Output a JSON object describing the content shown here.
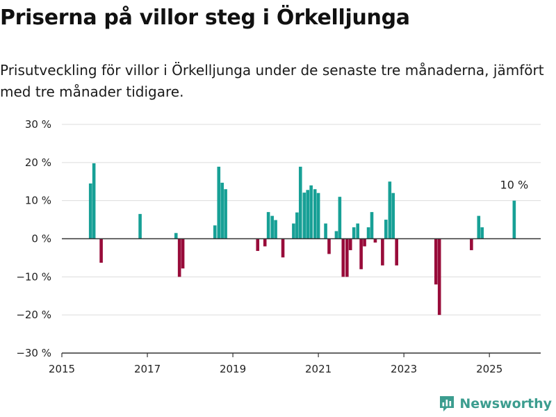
{
  "header": {
    "title": "Priserna på villor steg i Örkelljunga",
    "subtitle": "Prisutveckling för villor i Örkelljunga under de senaste tre månaderna, jämfört med tre månader tidigare."
  },
  "brand": {
    "name": "Newsworthy",
    "icon": "bar-chart-logo-icon",
    "color": "#3c9d8f"
  },
  "chart_data": {
    "type": "bar",
    "ylim": [
      -30,
      30
    ],
    "xlim": [
      2015,
      2026.2
    ],
    "yticks": [
      -30,
      -20,
      -10,
      0,
      10,
      20,
      30
    ],
    "ytick_labels": [
      "−30 %",
      "−20 %",
      "−10 %",
      "0 %",
      "10 %",
      "20 %",
      "30 %"
    ],
    "xticks": [
      2015,
      2017,
      2019,
      2021,
      2023,
      2025
    ],
    "xtick_labels": [
      "2015",
      "2017",
      "2019",
      "2021",
      "2023",
      "2025"
    ],
    "grid": true,
    "colors": {
      "positive": "#17a096",
      "negative": "#980c3a"
    },
    "annotation": {
      "text": "10 %",
      "x": 2025.58,
      "y": 10
    },
    "series": [
      {
        "x": [
          2015.67,
          2015.75,
          2015.92,
          2016.83,
          2017.67,
          2017.75,
          2017.83,
          2018.58,
          2018.67,
          2018.75,
          2018.83,
          2019.58,
          2019.75,
          2019.83,
          2019.92,
          2020.0,
          2020.17,
          2020.42,
          2020.5,
          2020.58,
          2020.67,
          2020.75,
          2020.83,
          2020.92,
          2021.0,
          2021.17,
          2021.25,
          2021.42,
          2021.5,
          2021.58,
          2021.67,
          2021.75,
          2021.83,
          2021.92,
          2022.0,
          2022.08,
          2022.17,
          2022.25,
          2022.33,
          2022.5,
          2022.58,
          2022.67,
          2022.75,
          2022.83,
          2023.75,
          2023.83,
          2024.58,
          2024.75,
          2024.83,
          2025.58
        ],
        "values": [
          14.5,
          19.8,
          -6.3,
          6.5,
          1.5,
          -10,
          -7.8,
          3.5,
          18.9,
          14.7,
          13,
          -3.2,
          -2,
          7,
          6,
          4.9,
          -4.9,
          4,
          6.9,
          18.9,
          12.1,
          12.8,
          14,
          13,
          12,
          4,
          -4,
          2,
          11,
          -10,
          -10,
          -3,
          3,
          4,
          -8,
          -2,
          3,
          7,
          -1,
          -7,
          5,
          15,
          12,
          -7,
          -12,
          -20,
          -3,
          6,
          3,
          10
        ]
      }
    ]
  }
}
